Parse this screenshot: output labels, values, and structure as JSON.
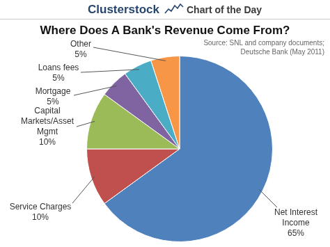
{
  "chart_data": {
    "type": "pie",
    "title": "Where Does A Bank's Revenue Come From?",
    "annotations": [
      "Clusterstock",
      "Chart of the Day",
      "Source: SNL and company documents;",
      "Deutsche Bank (May 2011)"
    ],
    "categories": [
      "Net Interest Income",
      "Service Charges",
      "Capital Markets/Asset Mgmt",
      "Mortgage",
      "Loans fees",
      "Other"
    ],
    "values": [
      65,
      10,
      10,
      5,
      5,
      5
    ],
    "value_labels": [
      "65%",
      "10%",
      "10%",
      "5%",
      "5%",
      "5%"
    ],
    "colors": [
      "#4f81bd",
      "#c0504d",
      "#9bbb59",
      "#8064a2",
      "#4bacc6",
      "#f79646"
    ],
    "data_labels": true
  }
}
